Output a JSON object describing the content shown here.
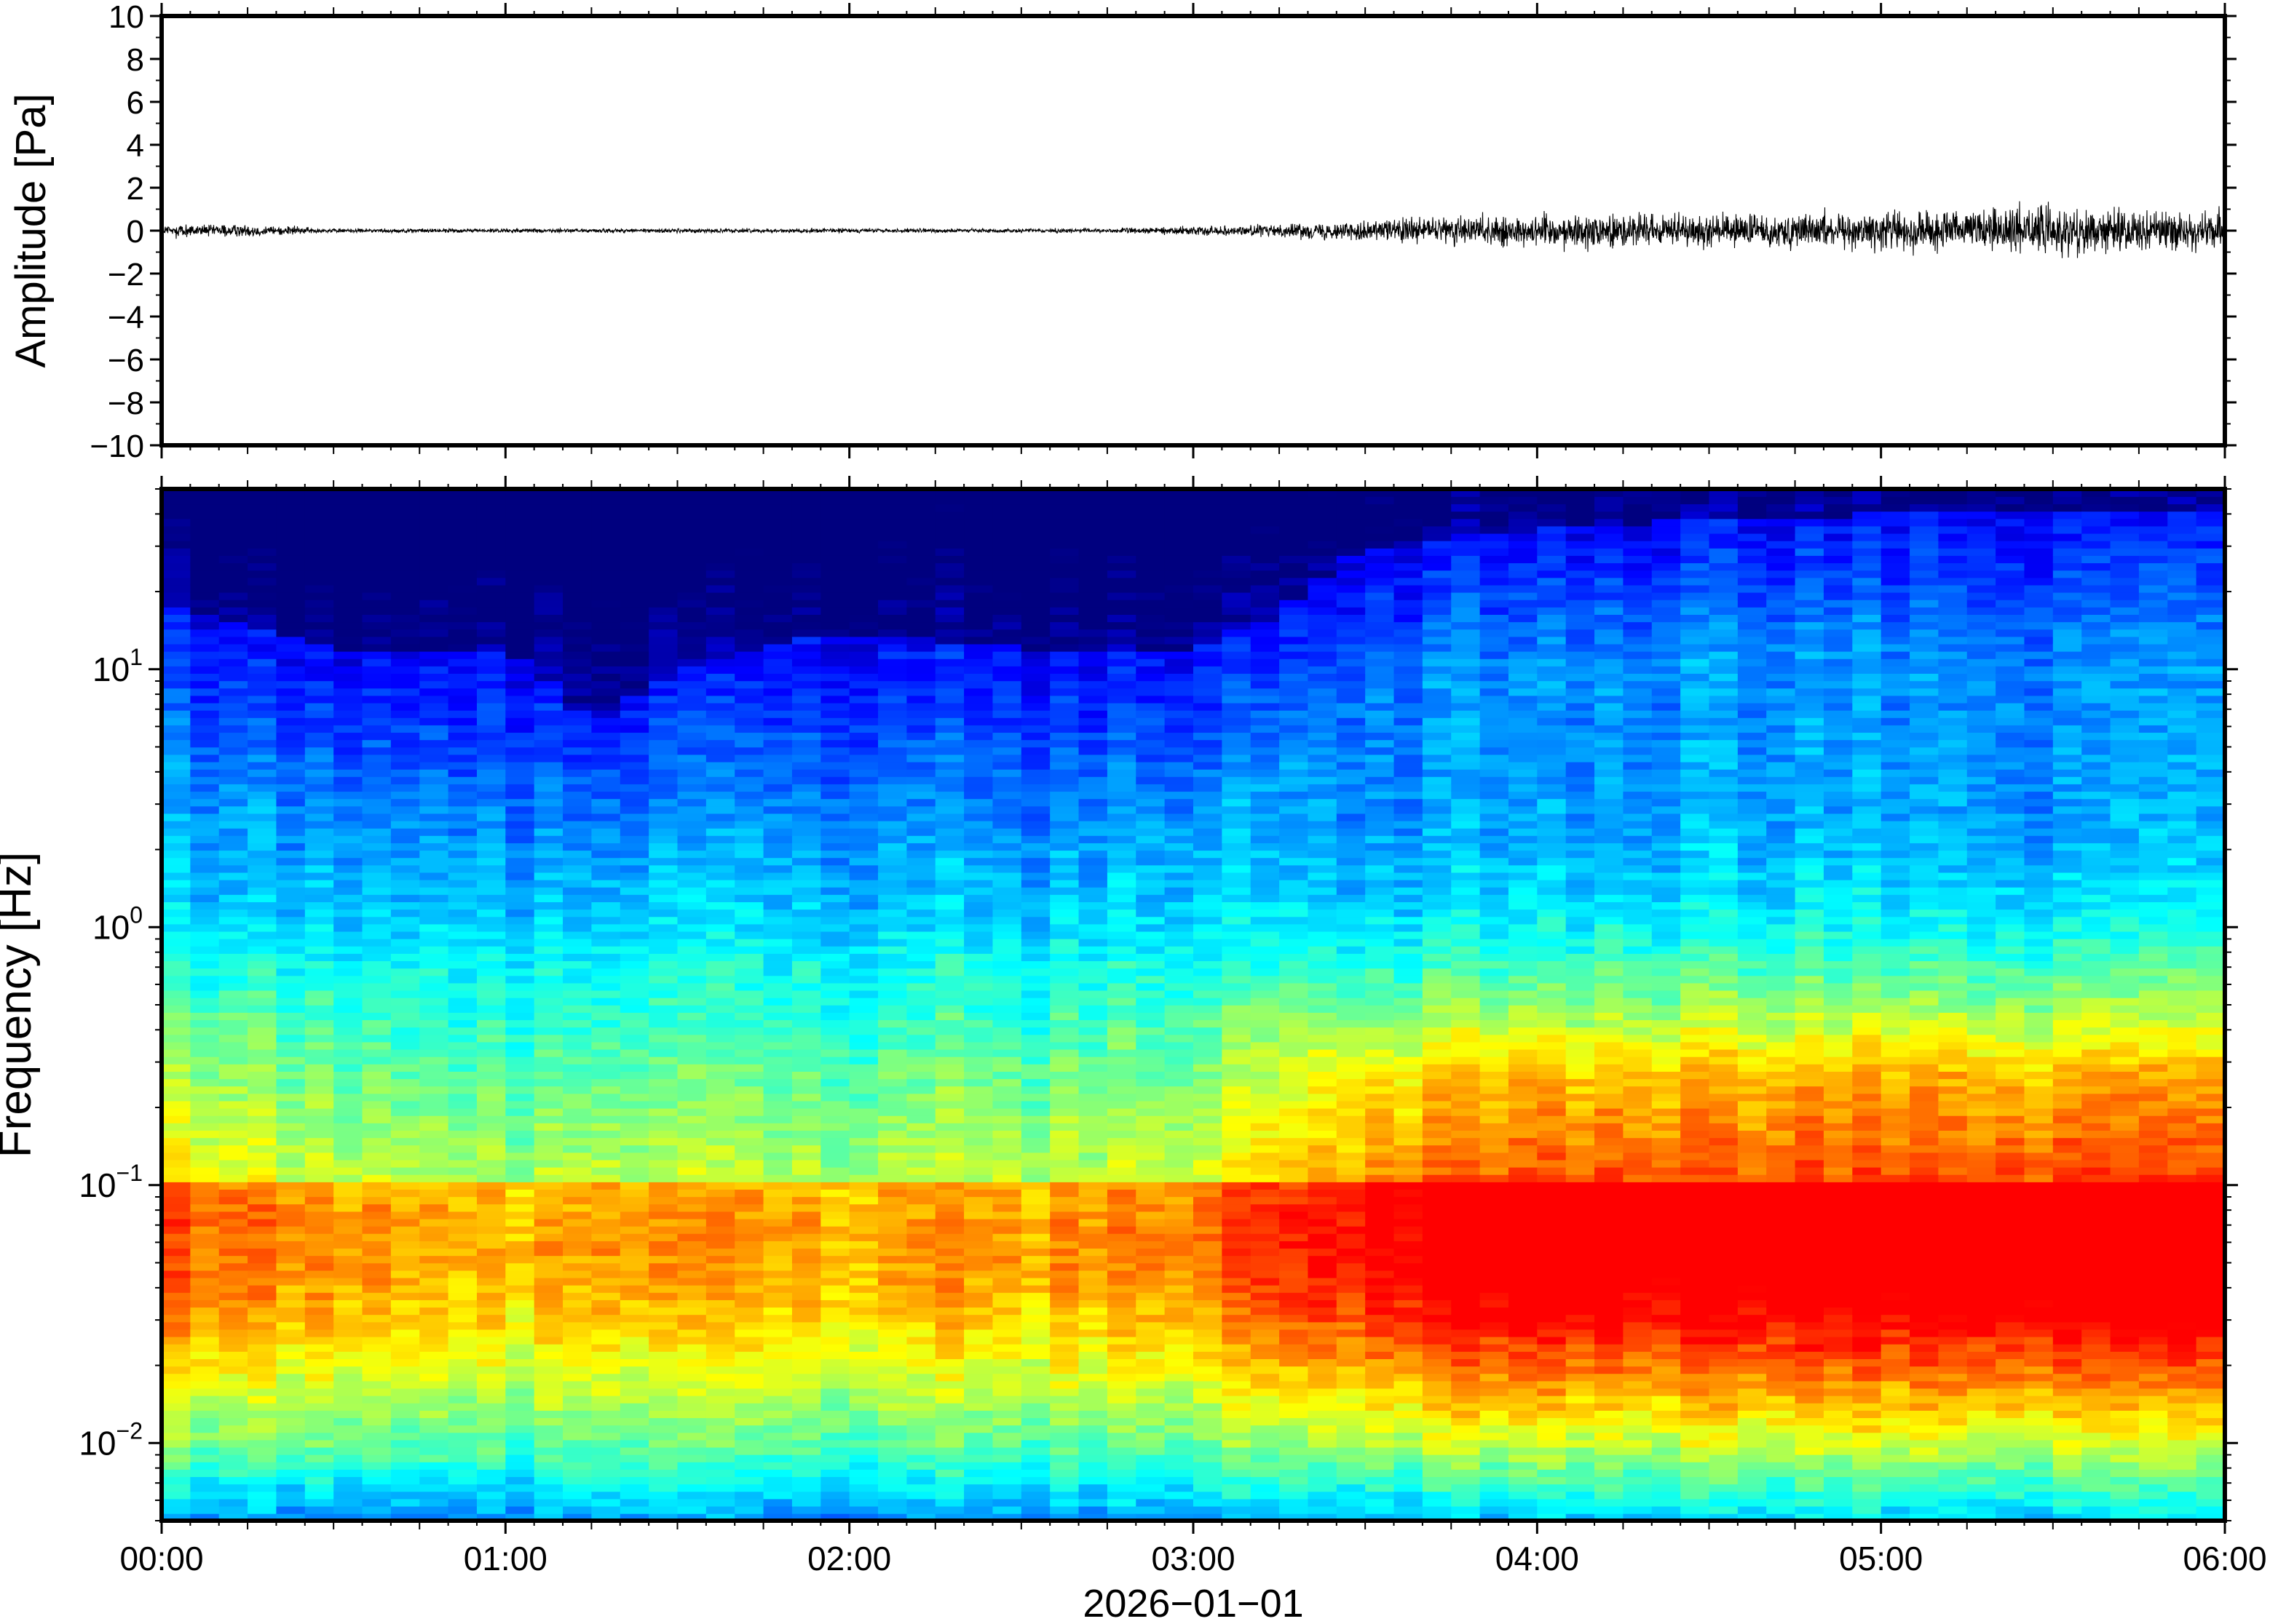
{
  "chart_data": [
    {
      "type": "line",
      "ylabel": "Amplitude [Pa]",
      "ylim": [
        -10,
        10
      ],
      "yticks": [
        10,
        8,
        6,
        4,
        2,
        0,
        -2,
        -4,
        -6,
        -8,
        -10
      ],
      "ytick_labels": [
        "10",
        "8",
        "6",
        "4",
        "2",
        "0",
        "−2",
        "−4",
        "−6",
        "−8",
        "−10"
      ],
      "xlim": [
        "00:00",
        "06:00"
      ],
      "series": [
        {
          "color": "#000000",
          "x_hours": [
            0,
            0.25,
            0.5,
            0.75,
            1.0,
            1.25,
            1.5,
            1.75,
            2.0,
            2.25,
            2.5,
            2.75,
            3.0,
            3.25,
            3.5,
            3.75,
            4.0,
            4.25,
            4.5,
            4.75,
            5.0,
            5.25,
            5.5,
            5.75,
            6.0
          ],
          "amplitude_envelope_pa": [
            0.3,
            0.3,
            0.1,
            0.1,
            0.1,
            0.1,
            0.1,
            0.1,
            0.1,
            0.1,
            0.1,
            0.1,
            0.2,
            0.3,
            0.5,
            0.7,
            0.8,
            0.8,
            0.8,
            0.8,
            0.9,
            1.1,
            1.2,
            1.0,
            0.9
          ]
        }
      ]
    },
    {
      "type": "heatmap",
      "ylabel": "Frequency [Hz]",
      "xlabel": "2026−01−01",
      "yscale": "log",
      "ylim_hz": [
        0.005,
        50
      ],
      "ytick_labels": [
        {
          "base": "10",
          "exp": "1",
          "value": 10
        },
        {
          "base": "10",
          "exp": "0",
          "value": 1
        },
        {
          "base": "10",
          "exp": "−1",
          "value": 0.1
        },
        {
          "base": "10",
          "exp": "−2",
          "value": 0.01
        }
      ],
      "xtick_labels": [
        "00:00",
        "01:00",
        "02:00",
        "03:00",
        "04:00",
        "05:00",
        "06:00"
      ],
      "colormap": [
        "#00007f",
        "#0000ff",
        "#007fff",
        "#00ffff",
        "#7fff7f",
        "#ffff00",
        "#ff7f00",
        "#ff0000"
      ],
      "time_hours": [
        0,
        0.5,
        1.0,
        1.25,
        1.5,
        2.0,
        2.5,
        3.0,
        3.25,
        3.5,
        4.0,
        4.5,
        5.0,
        5.5,
        6.0
      ],
      "upper_energy_cutoff_hz": [
        18,
        12,
        12,
        6,
        10,
        14,
        12,
        12,
        16,
        30,
        35,
        38,
        40,
        40,
        40
      ],
      "dominant_band_hz": [
        0.04,
        0.1
      ],
      "peak_intensity_by_time": [
        0.62,
        0.55,
        0.5,
        0.5,
        0.52,
        0.52,
        0.53,
        0.55,
        0.66,
        0.74,
        0.8,
        0.78,
        0.8,
        0.82,
        0.8
      ]
    }
  ]
}
